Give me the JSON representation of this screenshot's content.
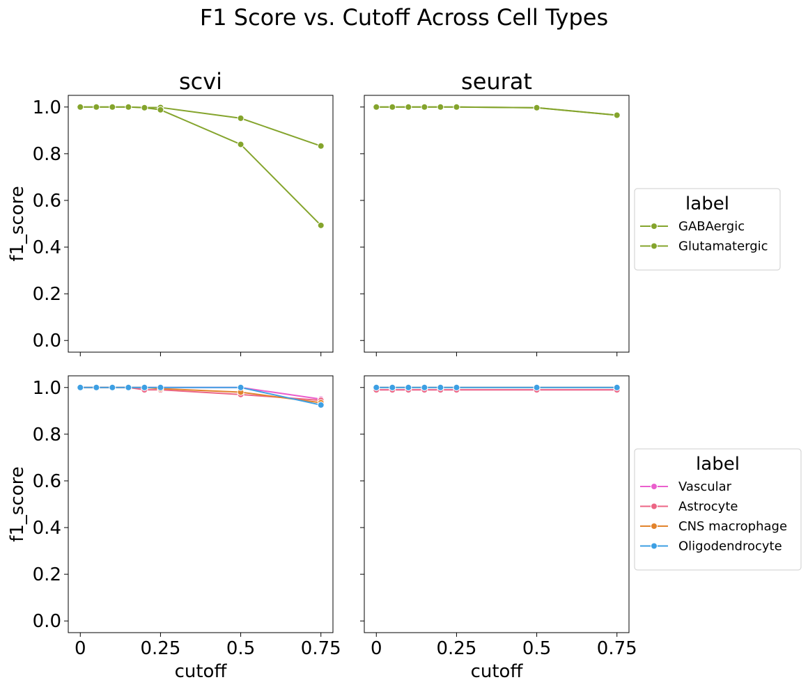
{
  "figure": {
    "title": "F1 Score vs. Cutoff Across Cell Types"
  },
  "chart_data": [
    {
      "type": "line",
      "panel": "top-left",
      "title": "scvi",
      "xlabel": "",
      "ylabel": "f1_score",
      "xlim": [
        -0.0375,
        0.7875
      ],
      "ylim": [
        -0.05,
        1.05
      ],
      "xticks": [
        0,
        0.25,
        0.5,
        0.75
      ],
      "yticks": [
        0.0,
        0.2,
        0.4,
        0.6,
        0.8,
        1.0
      ],
      "x": [
        0,
        0.05,
        0.1,
        0.15,
        0.2,
        0.25,
        0.5,
        0.75
      ],
      "legend_ref": "legend_top",
      "series": [
        {
          "name": "GABAergic",
          "color": "#84a42c",
          "values": [
            1.0,
            1.0,
            1.0,
            1.0,
            0.998,
            0.998,
            0.952,
            0.833
          ]
        },
        {
          "name": "Glutamatergic",
          "color": "#84a42c",
          "values": [
            1.0,
            1.0,
            1.0,
            1.0,
            0.997,
            0.988,
            0.84,
            0.493
          ]
        }
      ]
    },
    {
      "type": "line",
      "panel": "top-right",
      "title": "seurat",
      "xlabel": "",
      "ylabel": "",
      "xlim": [
        -0.0375,
        0.7875
      ],
      "ylim": [
        -0.05,
        1.05
      ],
      "xticks": [
        0,
        0.25,
        0.5,
        0.75
      ],
      "yticks": [
        0.0,
        0.2,
        0.4,
        0.6,
        0.8,
        1.0
      ],
      "x": [
        0,
        0.05,
        0.1,
        0.15,
        0.2,
        0.25,
        0.5,
        0.75
      ],
      "legend_ref": "legend_top",
      "series": [
        {
          "name": "GABAergic",
          "color": "#84a42c",
          "values": [
            1.0,
            1.0,
            1.0,
            1.0,
            1.0,
            1.0,
            0.997,
            0.965
          ]
        },
        {
          "name": "Glutamatergic",
          "color": "#84a42c",
          "values": [
            1.0,
            1.0,
            1.0,
            1.0,
            1.0,
            1.0,
            0.997,
            0.965
          ]
        }
      ]
    },
    {
      "type": "line",
      "panel": "bottom-left",
      "title": "",
      "xlabel": "cutoff",
      "ylabel": "f1_score",
      "xlim": [
        -0.0375,
        0.7875
      ],
      "ylim": [
        -0.05,
        1.05
      ],
      "xticks": [
        0,
        0.25,
        0.5,
        0.75
      ],
      "yticks": [
        0.0,
        0.2,
        0.4,
        0.6,
        0.8,
        1.0
      ],
      "x": [
        0,
        0.05,
        0.1,
        0.15,
        0.2,
        0.25,
        0.5,
        0.75
      ],
      "legend_ref": "legend_bottom",
      "series": [
        {
          "name": "Vascular",
          "color": "#ea5fcd",
          "values": [
            1.0,
            1.0,
            1.0,
            1.0,
            1.0,
            1.0,
            1.0,
            0.95
          ]
        },
        {
          "name": "Astrocyte",
          "color": "#ec6585",
          "values": [
            1.0,
            1.0,
            1.0,
            1.0,
            0.99,
            0.99,
            0.97,
            0.945
          ]
        },
        {
          "name": "CNS macrophage",
          "color": "#e2832c",
          "values": [
            1.0,
            1.0,
            1.0,
            1.0,
            1.0,
            0.995,
            0.98,
            0.935
          ]
        },
        {
          "name": "Oligodendrocyte",
          "color": "#3d9fe3",
          "values": [
            1.0,
            1.0,
            1.0,
            1.0,
            1.0,
            1.0,
            1.0,
            0.925
          ]
        }
      ]
    },
    {
      "type": "line",
      "panel": "bottom-right",
      "title": "",
      "xlabel": "cutoff",
      "ylabel": "",
      "xlim": [
        -0.0375,
        0.7875
      ],
      "ylim": [
        -0.05,
        1.05
      ],
      "xticks": [
        0,
        0.25,
        0.5,
        0.75
      ],
      "yticks": [
        0.0,
        0.2,
        0.4,
        0.6,
        0.8,
        1.0
      ],
      "x": [
        0,
        0.05,
        0.1,
        0.15,
        0.2,
        0.25,
        0.5,
        0.75
      ],
      "legend_ref": "legend_bottom",
      "series": [
        {
          "name": "Vascular",
          "color": "#ea5fcd",
          "values": [
            0.99,
            0.99,
            0.99,
            0.99,
            0.99,
            0.99,
            0.99,
            0.99
          ]
        },
        {
          "name": "Astrocyte",
          "color": "#ec6585",
          "values": [
            0.99,
            0.99,
            0.99,
            0.99,
            0.99,
            0.99,
            0.99,
            0.99
          ]
        },
        {
          "name": "CNS macrophage",
          "color": "#e2832c",
          "values": [
            1.0,
            1.0,
            1.0,
            1.0,
            1.0,
            1.0,
            1.0,
            1.0
          ]
        },
        {
          "name": "Oligodendrocyte",
          "color": "#3d9fe3",
          "values": [
            1.0,
            1.0,
            1.0,
            1.0,
            1.0,
            1.0,
            1.0,
            1.0
          ]
        }
      ]
    }
  ],
  "legends": {
    "legend_top": {
      "title": "label",
      "placement": "right of top row",
      "entries": [
        {
          "name": "GABAergic",
          "color": "#84a42c"
        },
        {
          "name": "Glutamatergic",
          "color": "#84a42c"
        }
      ]
    },
    "legend_bottom": {
      "title": "label",
      "placement": "right of bottom row",
      "entries": [
        {
          "name": "Vascular",
          "color": "#ea5fcd"
        },
        {
          "name": "Astrocyte",
          "color": "#ec6585"
        },
        {
          "name": "CNS macrophage",
          "color": "#e2832c"
        },
        {
          "name": "Oligodendrocyte",
          "color": "#3d9fe3"
        }
      ]
    }
  }
}
